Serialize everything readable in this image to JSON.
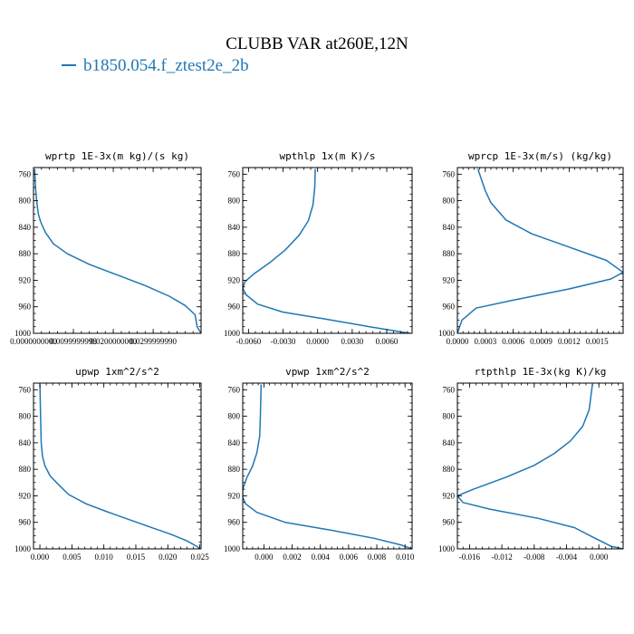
{
  "title": "CLUBB VAR at260E,12N",
  "legend": {
    "label": "b1850.054.f_ztest2e_2b",
    "color": "#1f77b4"
  },
  "chart_data": [
    {
      "type": "line",
      "title": "wprtp  1E-3x(m kg)/(s kg)",
      "xlim": [
        0.0,
        0.042
      ],
      "ylim": [
        1000,
        750
      ],
      "xticks": [
        0.0,
        0.01,
        0.02,
        0.03
      ],
      "xtick_labels": [
        "0.0000000000",
        "0.0099999998",
        "0.0200000000",
        "0.0299999990"
      ],
      "yticks": [
        760,
        800,
        840,
        880,
        920,
        960,
        1000
      ],
      "ytick_labels": [
        "760",
        "800",
        "840",
        "880",
        "920",
        "960",
        "1000"
      ],
      "series": [
        {
          "color": "#1f77b4",
          "x": [
            0.0003,
            0.0005,
            0.0008,
            0.0012,
            0.0018,
            0.003,
            0.005,
            0.0085,
            0.014,
            0.021,
            0.028,
            0.034,
            0.038,
            0.0405,
            0.041,
            0.042
          ],
          "y": [
            752,
            780,
            800,
            820,
            832,
            848,
            865,
            880,
            896,
            912,
            928,
            944,
            958,
            972,
            990,
            1000
          ]
        }
      ]
    },
    {
      "type": "line",
      "title": "wpthlp  1x(m K)/s",
      "xlim": [
        -0.0065,
        0.0082
      ],
      "ylim": [
        1000,
        750
      ],
      "xticks": [
        -0.006,
        -0.003,
        0.0,
        0.003,
        0.006
      ],
      "xtick_labels": [
        "-0.0060",
        "-0.0030",
        "0.0000",
        "0.0030",
        "0.0060"
      ],
      "yticks": [
        760,
        800,
        840,
        880,
        920,
        960,
        1000
      ],
      "ytick_labels": [
        "760",
        "800",
        "840",
        "880",
        "920",
        "960",
        "1000"
      ],
      "series": [
        {
          "color": "#1f77b4",
          "x": [
            -0.0002,
            -0.00025,
            -0.0004,
            -0.0008,
            -0.0016,
            -0.0028,
            -0.0042,
            -0.0055,
            -0.0063,
            -0.0065,
            -0.0062,
            -0.0052,
            -0.003,
            0.0005,
            0.0045,
            0.008
          ],
          "y": [
            752,
            780,
            806,
            830,
            852,
            874,
            894,
            910,
            922,
            932,
            942,
            956,
            968,
            978,
            990,
            1000
          ]
        }
      ]
    },
    {
      "type": "line",
      "title": "wprcp  1E-3x(m/s) (kg/kg)",
      "xlim": [
        0.0,
        0.00178
      ],
      "ylim": [
        1000,
        750
      ],
      "xticks": [
        0.0,
        0.0003,
        0.0006,
        0.0009,
        0.0012,
        0.0015
      ],
      "xtick_labels": [
        "0.0000",
        "0.0003",
        "0.0006",
        "0.0009",
        "0.0012",
        "0.0015"
      ],
      "yticks": [
        760,
        800,
        840,
        880,
        920,
        960,
        1000
      ],
      "ytick_labels": [
        "760",
        "800",
        "840",
        "880",
        "920",
        "960",
        "1000"
      ],
      "series": [
        {
          "color": "#1f77b4",
          "x": [
            0.00022,
            0.0003,
            0.00036,
            0.00052,
            0.0008,
            0.0012,
            0.0016,
            0.00178,
            0.00165,
            0.0012,
            0.0006,
            0.0002,
            5e-05,
            0.0
          ],
          "y": [
            752,
            785,
            803,
            829,
            850,
            870,
            890,
            908,
            918,
            933,
            950,
            962,
            980,
            1000
          ]
        }
      ]
    },
    {
      "type": "line",
      "title": "upwp  1xm^2/s^2",
      "xlim": [
        -0.001,
        0.0252
      ],
      "ylim": [
        1000,
        750
      ],
      "xticks": [
        0.0,
        0.005,
        0.01,
        0.015,
        0.02,
        0.025
      ],
      "xtick_labels": [
        "0.000",
        "0.005",
        "0.010",
        "0.015",
        "0.020",
        "0.025"
      ],
      "yticks": [
        760,
        800,
        840,
        880,
        920,
        960,
        1000
      ],
      "ytick_labels": [
        "760",
        "800",
        "840",
        "880",
        "920",
        "960",
        "1000"
      ],
      "series": [
        {
          "color": "#1f77b4",
          "x": [
            0.0,
            0.0001,
            0.0002,
            0.0004,
            0.0008,
            0.0016,
            0.003,
            0.0045,
            0.0072,
            0.0105,
            0.014,
            0.0175,
            0.0205,
            0.023,
            0.0245,
            0.025
          ],
          "y": [
            752,
            800,
            840,
            860,
            875,
            890,
            904,
            918,
            932,
            944,
            956,
            968,
            978,
            988,
            996,
            1000
          ]
        }
      ]
    },
    {
      "type": "line",
      "title": "vpwp  1xm^2/s^2",
      "xlim": [
        -0.0015,
        0.0105
      ],
      "ylim": [
        1000,
        750
      ],
      "xticks": [
        0.0,
        0.002,
        0.004,
        0.006,
        0.008,
        0.01
      ],
      "xtick_labels": [
        "0.000",
        "0.002",
        "0.004",
        "0.006",
        "0.008",
        "0.010"
      ],
      "yticks": [
        760,
        800,
        840,
        880,
        920,
        960,
        1000
      ],
      "ytick_labels": [
        "760",
        "800",
        "840",
        "880",
        "920",
        "960",
        "1000"
      ],
      "series": [
        {
          "color": "#1f77b4",
          "x": [
            -0.0002,
            -0.00025,
            -0.0003,
            -0.0005,
            -0.0008,
            -0.0012,
            -0.0015,
            -0.0015,
            -0.0013,
            -0.0005,
            0.0015,
            0.0048,
            0.0078,
            0.0097,
            0.0105
          ],
          "y": [
            752,
            800,
            830,
            855,
            875,
            892,
            910,
            922,
            932,
            945,
            960,
            972,
            984,
            994,
            1000
          ]
        }
      ]
    },
    {
      "type": "line",
      "title": "rtpthlp  1E-3x(kg K)/kg",
      "xlim": [
        -0.0175,
        0.003
      ],
      "ylim": [
        1000,
        750
      ],
      "xticks": [
        -0.016,
        -0.012,
        -0.008,
        -0.004,
        0.0
      ],
      "xtick_labels": [
        "-0.016",
        "-0.012",
        "-0.008",
        "-0.004",
        "0.000"
      ],
      "yticks": [
        760,
        800,
        840,
        880,
        920,
        960,
        1000
      ],
      "ytick_labels": [
        "760",
        "800",
        "840",
        "880",
        "920",
        "960",
        "1000"
      ],
      "series": [
        {
          "color": "#1f77b4",
          "x": [
            -0.0008,
            -0.0012,
            -0.002,
            -0.0035,
            -0.0055,
            -0.008,
            -0.0115,
            -0.0155,
            -0.0175,
            -0.0168,
            -0.0135,
            -0.0075,
            -0.003,
            -0.0008,
            0.0015,
            0.003
          ],
          "y": [
            752,
            790,
            815,
            837,
            856,
            874,
            892,
            910,
            920,
            930,
            940,
            954,
            968,
            982,
            996,
            1000
          ]
        }
      ]
    }
  ]
}
